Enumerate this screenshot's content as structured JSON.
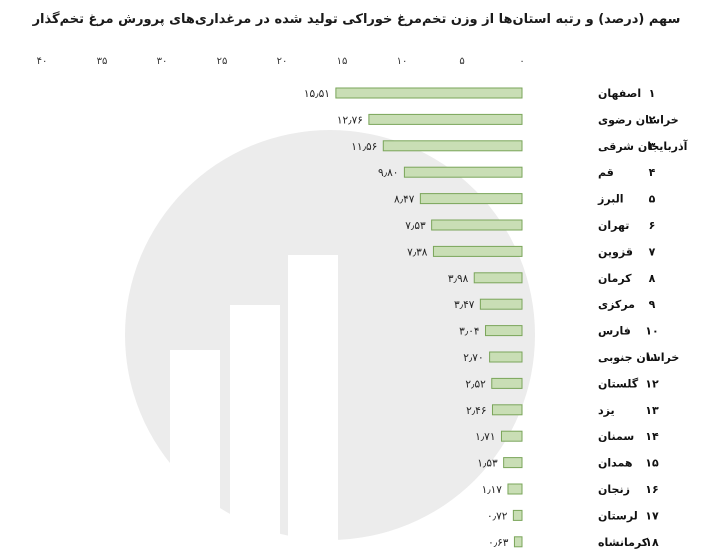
{
  "chart_data": {
    "type": "bar",
    "orientation": "horizontal",
    "direction": "rtl",
    "title": "سهم (درصد) و رتبه استان‌ها از وزن تخم‌مرغ خوراکی تولید شده در مرغداری‌های پرورش مرغ تخم‌گذار",
    "x_ticks": [
      "۰",
      "۵",
      "۱۰",
      "۱۵",
      "۲۰",
      "۲۵",
      "۳۰",
      "۳۵",
      "۴۰"
    ],
    "xlim": [
      0,
      40
    ],
    "grid": false,
    "bar_color": "#c9deb5",
    "bar_border": "#7aa55a",
    "categories": [
      "اصفهان",
      "خراسان رضوی",
      "آذربایجان شرقی",
      "قم",
      "البرز",
      "تهران",
      "قزوین",
      "کرمان",
      "مرکزی",
      "فارس",
      "خراسان جنوبی",
      "گلستان",
      "یزد",
      "سمنان",
      "همدان",
      "زنجان",
      "لرستان",
      "کرمانشاه"
    ],
    "ranks": [
      "۱",
      "۲",
      "۳",
      "۴",
      "۵",
      "۶",
      "۷",
      "۸",
      "۹",
      "۱۰",
      "۱۱",
      "۱۲",
      "۱۳",
      "۱۴",
      "۱۵",
      "۱۶",
      "۱۷",
      "۱۸"
    ],
    "values": [
      15.51,
      12.76,
      11.56,
      9.8,
      8.47,
      7.53,
      7.38,
      3.98,
      3.47,
      3.04,
      2.7,
      2.52,
      2.46,
      1.71,
      1.53,
      1.17,
      0.72,
      0.63
    ],
    "value_labels": [
      "۱۵٫۵۱",
      "۱۲٫۷۶",
      "۱۱٫۵۶",
      "۹٫۸۰",
      "۸٫۴۷",
      "۷٫۵۳",
      "۷٫۳۸",
      "۳٫۹۸",
      "۳٫۴۷",
      "۳٫۰۴",
      "۲٫۷۰",
      "۲٫۵۲",
      "۲٫۴۶",
      "۱٫۷۱",
      "۱٫۵۳",
      "۱٫۱۷",
      "۰٫۷۲",
      "۰٫۶۳"
    ]
  }
}
